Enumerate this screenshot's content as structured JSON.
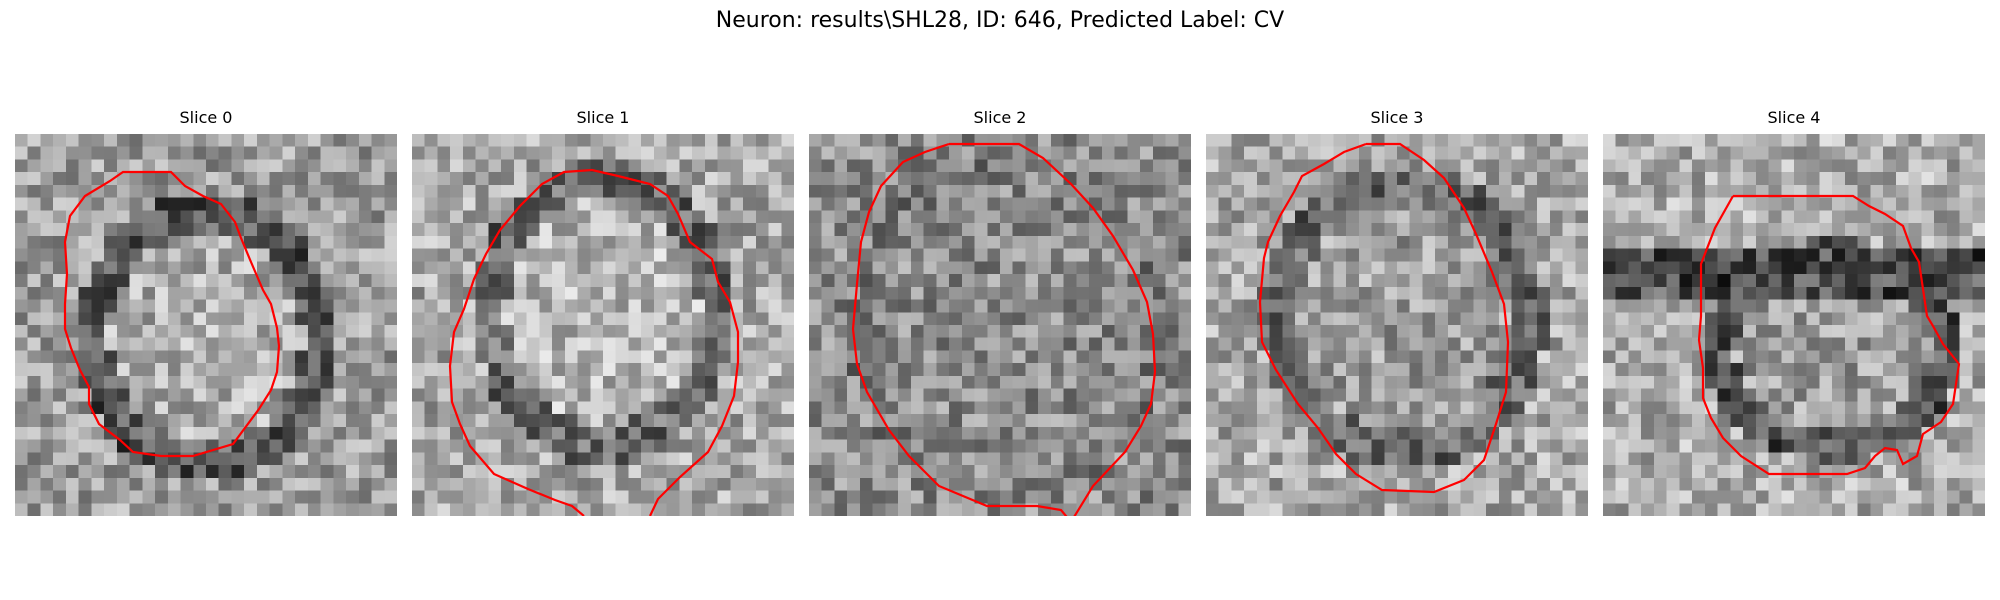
{
  "figure": {
    "suptitle": "Neuron: results\\SHL28, ID: 646, Predicted Label: CV",
    "contour_color": "#ff0000",
    "colormap": "gray"
  },
  "slices": [
    {
      "title": "Slice 0"
    },
    {
      "title": "Slice 1"
    },
    {
      "title": "Slice 2"
    },
    {
      "title": "Slice 3"
    },
    {
      "title": "Slice 4"
    }
  ]
}
